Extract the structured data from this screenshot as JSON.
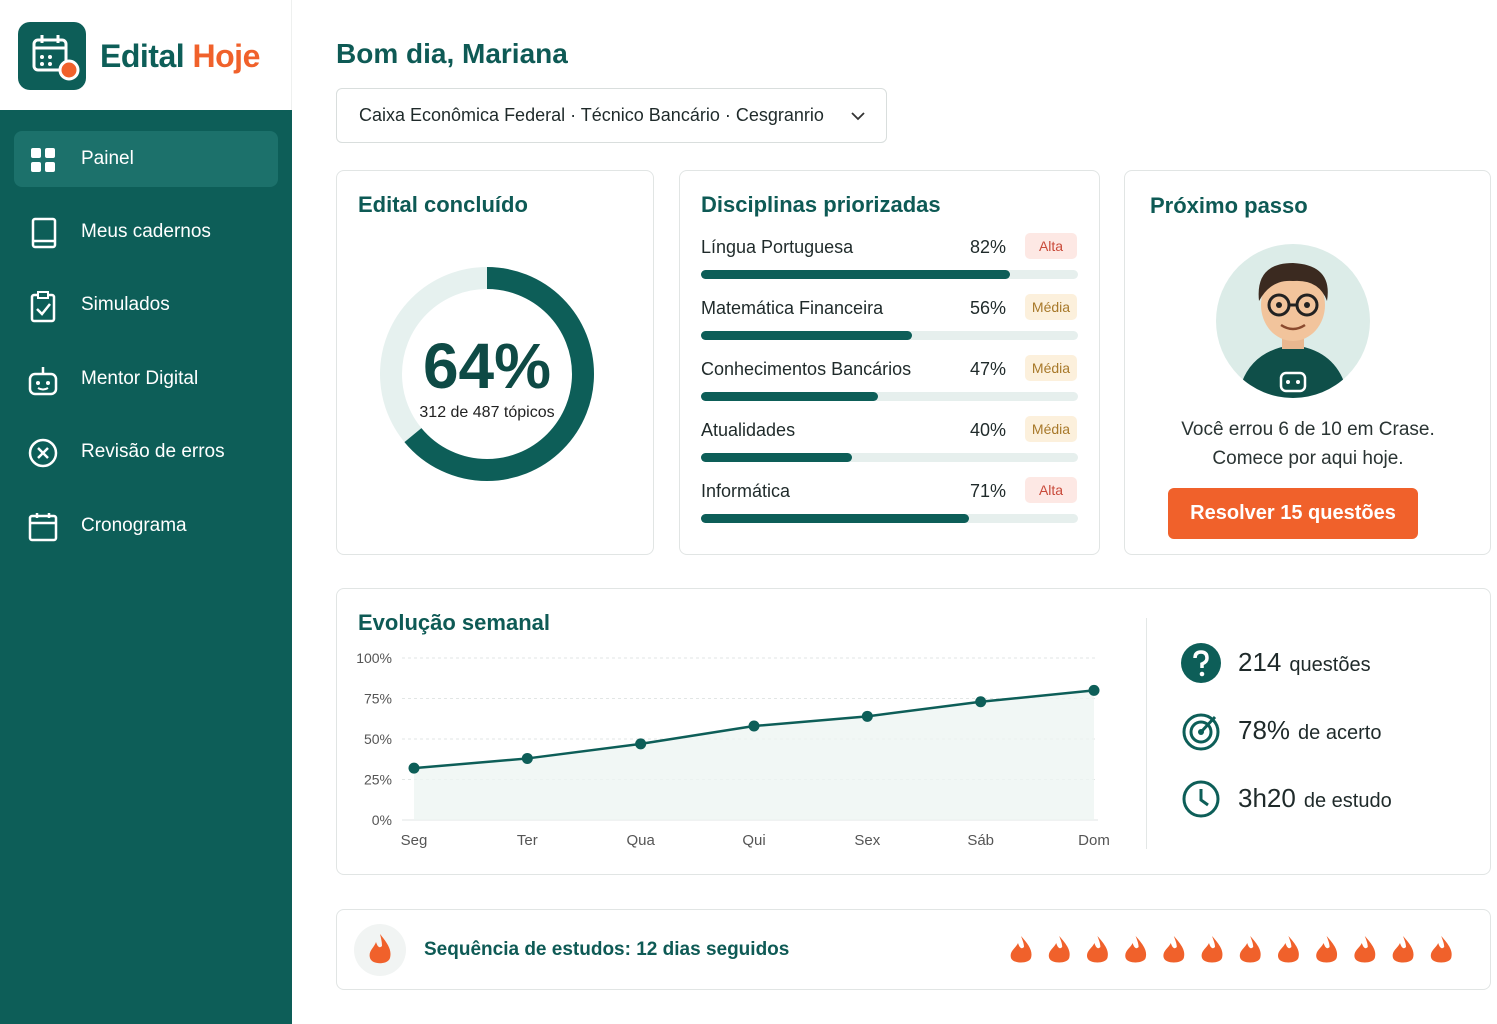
{
  "brand": {
    "name_main": "Edital",
    "name_accent": "Hoje"
  },
  "nav": [
    {
      "label": "Painel",
      "active": true
    },
    {
      "label": "Meus cadernos",
      "active": false
    },
    {
      "label": "Simulados",
      "active": false
    },
    {
      "label": "Mentor Digital",
      "active": false
    },
    {
      "label": "Revisão de erros",
      "active": false
    },
    {
      "label": "Cronograma",
      "active": false
    }
  ],
  "header": {
    "greeting": "Bom dia, Mariana",
    "exam_select": "Caixa Econômica Federal · Técnico Bancário · Cesgranrio"
  },
  "completion": {
    "title": "Edital concluído",
    "value": 64,
    "value_label": "64%",
    "caption": "312 de 487 tópicos",
    "color": "#0d5e58"
  },
  "disciplines": {
    "title": "Disciplinas priorizadas",
    "color": "#0d5e58",
    "items": [
      {
        "name": "Língua Portuguesa",
        "value": 82,
        "value_label": "82%",
        "priority": "Alta",
        "badge_color": "#c94a3a",
        "badge_bg": "#fde8e4"
      },
      {
        "name": "Matemática Financeira",
        "value": 56,
        "value_label": "56%",
        "priority": "Média",
        "badge_color": "#a8792a",
        "badge_bg": "#fcf0dc"
      },
      {
        "name": "Conhecimentos Bancários",
        "value": 47,
        "value_label": "47%",
        "priority": "Média",
        "badge_color": "#a8792a",
        "badge_bg": "#fcf0dc"
      },
      {
        "name": "Atualidades",
        "value": 40,
        "value_label": "40%",
        "priority": "Média",
        "badge_color": "#a8792a",
        "badge_bg": "#fcf0dc"
      },
      {
        "name": "Informática",
        "value": 71,
        "value_label": "71%",
        "priority": "Alta",
        "badge_color": "#c94a3a",
        "badge_bg": "#fde8e4"
      }
    ]
  },
  "next_step": {
    "title": "Próximo passo",
    "message": "Você errou 6 de 10 em Crase. Comece por aqui hoje.",
    "button": "Resolver 15 questões"
  },
  "weekly_chart": {
    "type": "line",
    "title": "Evolução semanal",
    "categories": [
      "Seg",
      "Ter",
      "Qua",
      "Qui",
      "Sex",
      "Sáb",
      "Dom"
    ],
    "values": [
      32,
      38,
      47,
      58,
      64,
      73,
      80
    ],
    "color": "#0d5e58",
    "ylim": [
      0,
      100
    ],
    "yticks": [
      {
        "value": 0,
        "label": "0%"
      },
      {
        "value": 25,
        "label": "25%"
      },
      {
        "value": 50,
        "label": "50%"
      },
      {
        "value": 75,
        "label": "75%"
      },
      {
        "value": 100,
        "label": "100%"
      }
    ],
    "grid": true
  },
  "stats": [
    {
      "value": "214",
      "unit": "questões"
    },
    {
      "value": "78%",
      "unit": "de acerto"
    },
    {
      "value": "3h20",
      "unit": "de estudo"
    }
  ],
  "streak": {
    "label": "Sequência de estudos:",
    "value_label": "12 dias seguidos",
    "days": 12
  }
}
